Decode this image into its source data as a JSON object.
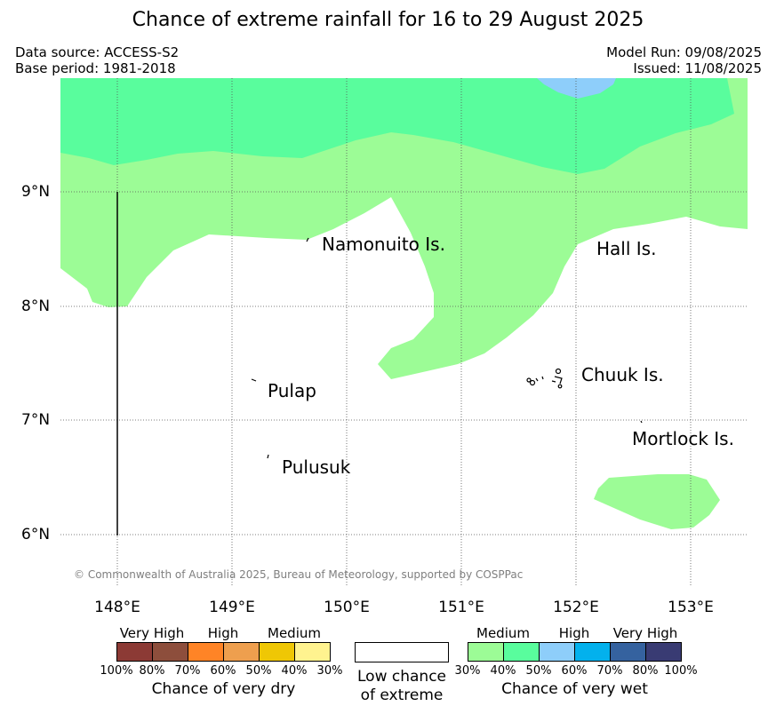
{
  "title": "Chance of extreme rainfall for 16 to 29 August 2025",
  "header": {
    "data_source": "Data source: ACCESS-S2",
    "base_period": "Base period: 1981-2018",
    "model_run": "Model Run: 09/08/2025",
    "issued": "Issued: 11/08/2025"
  },
  "map": {
    "lat_labels": [
      "9°N",
      "8°N",
      "7°N",
      "6°N"
    ],
    "lon_labels": [
      "148°E",
      "149°E",
      "150°E",
      "151°E",
      "152°E",
      "153°E"
    ],
    "places": [
      {
        "name": "Namonuito Is."
      },
      {
        "name": "Hall Is."
      },
      {
        "name": "Pulap"
      },
      {
        "name": "Chuuk Is."
      },
      {
        "name": "Pulusuk"
      },
      {
        "name": "Mortlock Is."
      }
    ],
    "copyright": "© Commonwealth of Australia 2025, Bureau of Meteorology, supported by COSPPac",
    "colors": {
      "wet_30_40": "#9cfc96",
      "wet_40_50": "#59fd9d",
      "wet_50_60": "#8ecefa"
    }
  },
  "legend": {
    "dry": {
      "categories": [
        "Very High",
        "High",
        "Medium"
      ],
      "colors": [
        "#8c3a35",
        "#8d4e3c",
        "#ff8426",
        "#ee9f4e",
        "#efc705",
        "#fff38f"
      ],
      "ticks": [
        "100%",
        "80%",
        "70%",
        "60%",
        "50%",
        "40%",
        "30%"
      ],
      "title": "Chance of very dry"
    },
    "low": {
      "title_line1": "Low chance",
      "title_line2": "of extreme"
    },
    "wet": {
      "categories": [
        "Medium",
        "High",
        "Very High"
      ],
      "colors": [
        "#9cfc96",
        "#59fd9d",
        "#8ecefa",
        "#03b1ed",
        "#35629f",
        "#393b73"
      ],
      "ticks": [
        "30%",
        "40%",
        "50%",
        "60%",
        "70%",
        "80%",
        "100%"
      ],
      "title": "Chance of very wet"
    }
  }
}
